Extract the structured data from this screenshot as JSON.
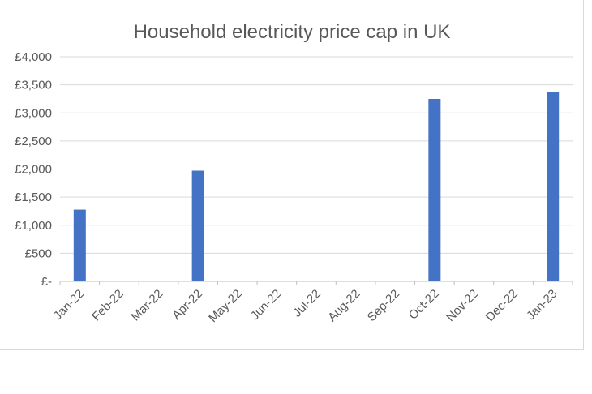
{
  "chart_data": {
    "type": "bar",
    "title": "Household electricity price cap in UK",
    "xlabel": "",
    "ylabel": "",
    "categories": [
      "Jan-22",
      "Feb-22",
      "Mar-22",
      "Apr-22",
      "May-22",
      "Jun-22",
      "Jul-22",
      "Aug-22",
      "Sep-22",
      "Oct-22",
      "Nov-22",
      "Dec-22",
      "Jan-23"
    ],
    "values": [
      1277,
      null,
      null,
      1971,
      null,
      null,
      null,
      null,
      null,
      3249,
      null,
      null,
      3365
    ],
    "ylim": [
      0,
      4000
    ],
    "yticks": [
      0,
      500,
      1000,
      1500,
      2000,
      2500,
      3000,
      3500,
      4000
    ],
    "ytick_labels": [
      "£-",
      "£500",
      "£1,000",
      "£1,500",
      "£2,000",
      "£2,500",
      "£3,000",
      "£3,500",
      "£4,000"
    ],
    "grid": true,
    "legend": "none",
    "colors": {
      "bar": "#4472c4",
      "grid": "#d9d9d9",
      "text": "#595959",
      "axis": "#bfbfbf"
    }
  }
}
